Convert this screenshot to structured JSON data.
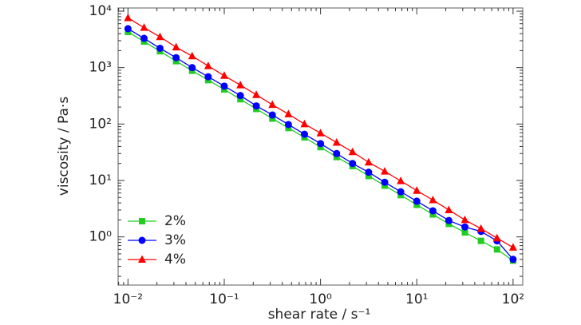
{
  "chart_data": {
    "type": "line",
    "log_x": true,
    "log_y": true,
    "xlabel": "shear rate / s⁻¹",
    "ylabel": "viscosity / Pa·s",
    "x": [
      0.01,
      0.0147,
      0.0215,
      0.0316,
      0.0464,
      0.0681,
      0.1,
      0.147,
      0.215,
      0.316,
      0.464,
      0.681,
      1,
      1.47,
      2.15,
      3.16,
      4.64,
      6.81,
      10,
      14.7,
      21.5,
      31.6,
      46.4,
      68.1,
      100
    ],
    "series": [
      {
        "name": "2%",
        "color": "#22cc22",
        "marker": "square",
        "values": [
          4300,
          2900,
          1950,
          1300,
          880,
          600,
          410,
          275,
          185,
          125,
          85,
          58,
          39,
          26,
          18,
          12,
          8.1,
          5.5,
          3.7,
          2.5,
          1.7,
          1.2,
          0.85,
          0.6,
          0.38
        ]
      },
      {
        "name": "3%",
        "color": "#0000ff",
        "marker": "circle",
        "values": [
          4900,
          3300,
          2200,
          1500,
          1000,
          690,
          470,
          320,
          210,
          145,
          98,
          66,
          45,
          30,
          20,
          14,
          9.3,
          6.3,
          4.3,
          2.9,
          1.95,
          1.5,
          1.25,
          0.85,
          0.4
        ]
      },
      {
        "name": "4%",
        "color": "#ff0000",
        "marker": "triangle",
        "values": [
          7600,
          5100,
          3500,
          2300,
          1600,
          1070,
          720,
          490,
          330,
          220,
          150,
          100,
          69,
          47,
          32,
          21,
          14.5,
          9.8,
          6.6,
          4.5,
          3.0,
          2.0,
          1.4,
          0.95,
          0.65
        ]
      }
    ],
    "xlim": [
      0.0079,
      126
    ],
    "xticks": [
      {
        "value": 0.01,
        "label": "10⁻²"
      },
      {
        "value": 0.1,
        "label": "10⁻¹"
      },
      {
        "value": 1,
        "label": "10⁰"
      },
      {
        "value": 10,
        "label": "10¹"
      },
      {
        "value": 100,
        "label": "10²"
      }
    ],
    "ylim": [
      0.14,
      11400
    ],
    "yticks": [
      {
        "value": 1,
        "label": "10⁰"
      },
      {
        "value": 10,
        "label": "10¹"
      },
      {
        "value": 100,
        "label": "10²"
      },
      {
        "value": 1000,
        "label": "10³"
      },
      {
        "value": 10000,
        "label": "10⁴"
      }
    ],
    "legend": "lower left"
  }
}
